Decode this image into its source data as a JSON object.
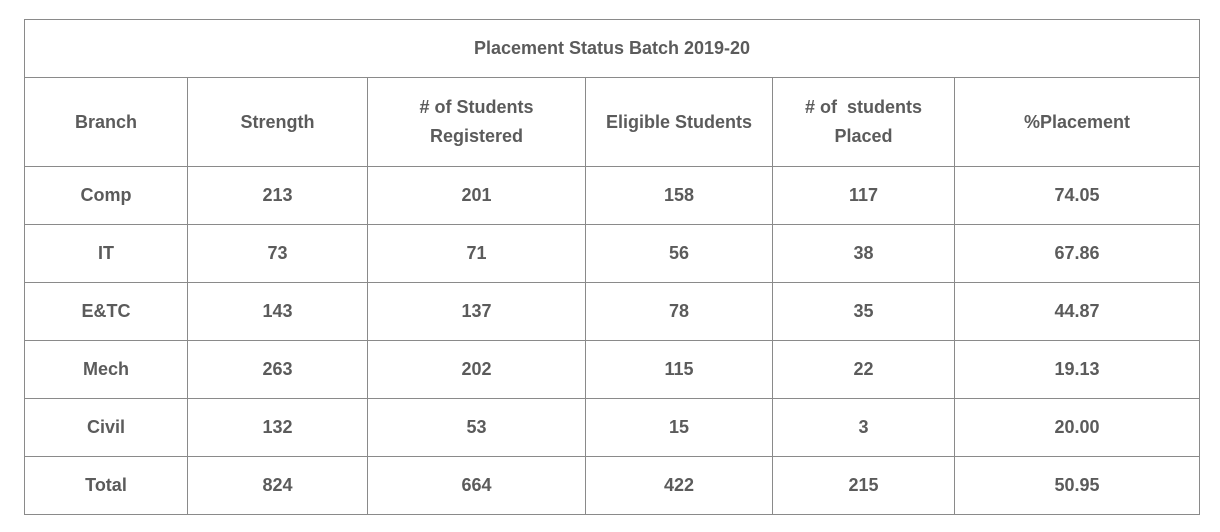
{
  "table": {
    "title": "Placement Status Batch 2019-20",
    "headers": [
      {
        "line1": "Branch",
        "line2": ""
      },
      {
        "line1": "Strength",
        "line2": ""
      },
      {
        "line1": "# of Students",
        "line2": "Registered"
      },
      {
        "line1": "Eligible Students",
        "line2": ""
      },
      {
        "line1": "# of  students",
        "line2": "Placed"
      },
      {
        "line1": "%Placement",
        "line2": ""
      }
    ],
    "rows": [
      [
        "Comp",
        "213",
        "201",
        "158",
        "117",
        "74.05"
      ],
      [
        "IT",
        "73",
        "71",
        "56",
        "38",
        "67.86"
      ],
      [
        "E&TC",
        "143",
        "137",
        "78",
        "35",
        "44.87"
      ],
      [
        "Mech",
        "263",
        "202",
        "115",
        "22",
        "19.13"
      ],
      [
        "Civil",
        "132",
        "53",
        "15",
        "3",
        "20.00"
      ],
      [
        "Total",
        "824",
        "664",
        "422",
        "215",
        "50.95"
      ]
    ]
  },
  "colors": {
    "text": "#5b5b5b",
    "border": "#8a8a8a",
    "background": "#ffffff"
  }
}
